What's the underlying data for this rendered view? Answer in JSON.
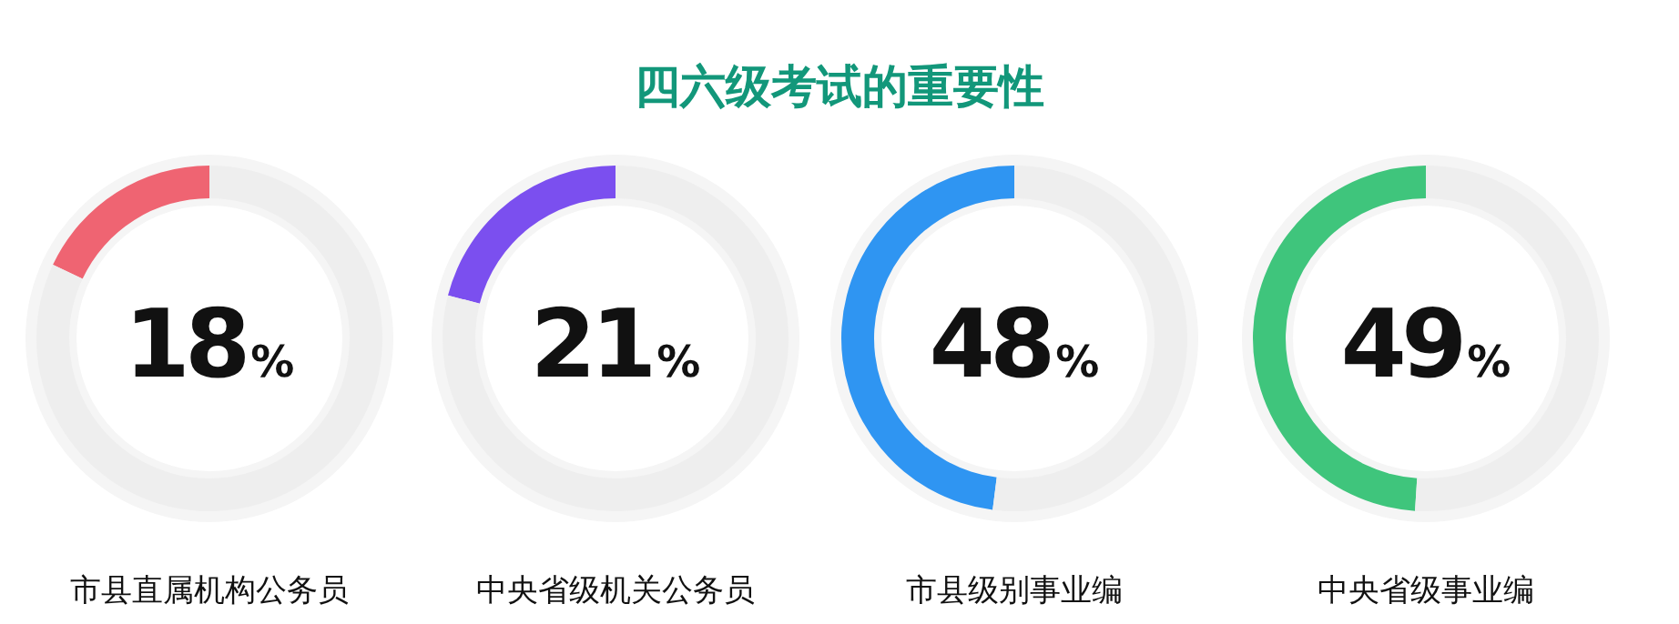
{
  "chart_data": [
    {
      "type": "other",
      "title": "四六级考试的重要性"
    },
    {
      "type": "donut",
      "title": "市县直属机构公务员",
      "categories": [
        null,
        null
      ],
      "values": [
        18,
        82
      ],
      "colors": [
        "#ef6472",
        "#eeeeee"
      ],
      "annotations": [
        "18%"
      ]
    },
    {
      "type": "donut",
      "title": "中央省级机关公务员",
      "categories": [
        null,
        null
      ],
      "values": [
        21,
        79
      ],
      "colors": [
        "#7b4fef",
        "#eeeeee"
      ],
      "annotations": [
        "21%"
      ]
    },
    {
      "type": "donut",
      "title": "市县级别事业编",
      "categories": [
        null,
        null
      ],
      "values": [
        48,
        52
      ],
      "colors": [
        "#2f95f2",
        "#eeeeee"
      ],
      "annotations": [
        "48%"
      ]
    },
    {
      "type": "donut",
      "title": "中央省级事业编",
      "categories": [
        null,
        null
      ],
      "values": [
        49,
        51
      ],
      "colors": [
        "#3fc57c",
        "#eeeeee"
      ],
      "annotations": [
        "49%"
      ]
    }
  ]
}
